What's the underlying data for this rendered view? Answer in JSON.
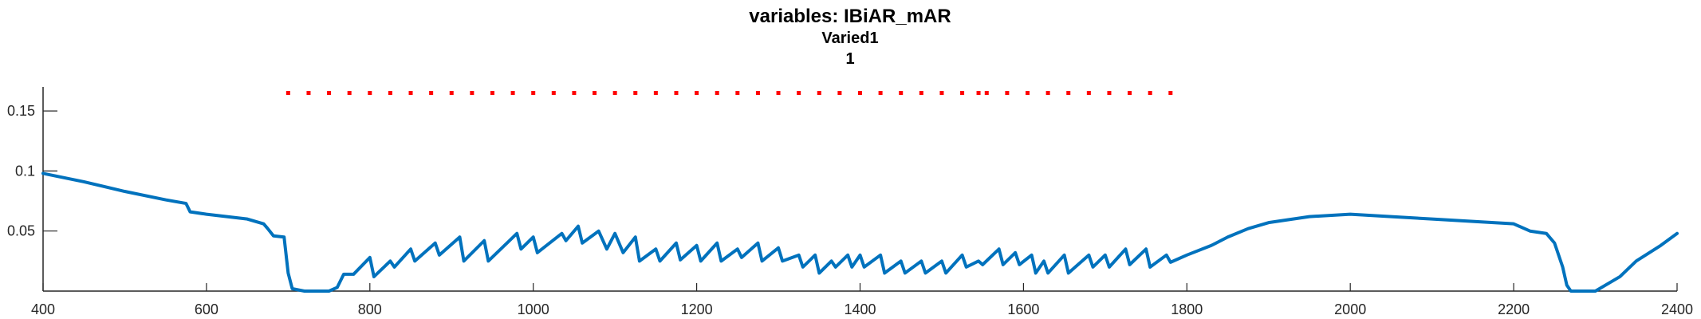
{
  "chart_data": {
    "type": "line",
    "title_lines": [
      "variables: IBiAR_mAR",
      "Varied1",
      "1"
    ],
    "xlabel": "",
    "ylabel": "",
    "xlim": [
      400,
      2400
    ],
    "ylim": [
      0,
      0.17
    ],
    "xticks": [
      400,
      600,
      800,
      1000,
      1200,
      1400,
      1600,
      1800,
      2000,
      2200,
      2400
    ],
    "xtick_labels": [
      "400",
      "600",
      "800",
      "1000",
      "1200",
      "1400",
      "1600",
      "1800",
      "2000",
      "2200",
      "2400"
    ],
    "yticks": [
      0.05,
      0.1,
      0.15
    ],
    "ytick_labels": [
      "0.05",
      "0.1",
      "0.15"
    ],
    "grid": false,
    "series": [
      {
        "type": "line",
        "color": "#0072BD",
        "points": [
          [
            400,
            0.098
          ],
          [
            450,
            0.091
          ],
          [
            500,
            0.083
          ],
          [
            550,
            0.076
          ],
          [
            575,
            0.073
          ],
          [
            580,
            0.066
          ],
          [
            600,
            0.064
          ],
          [
            650,
            0.06
          ],
          [
            670,
            0.056
          ],
          [
            675,
            0.052
          ],
          [
            682,
            0.046
          ],
          [
            695,
            0.045
          ],
          [
            700,
            0.015
          ],
          [
            705,
            0.002
          ],
          [
            720,
            0.0
          ],
          [
            750,
            0.0
          ],
          [
            760,
            0.003
          ],
          [
            768,
            0.014
          ],
          [
            780,
            0.014
          ],
          [
            800,
            0.028
          ],
          [
            805,
            0.012
          ],
          [
            825,
            0.025
          ],
          [
            830,
            0.02
          ],
          [
            850,
            0.035
          ],
          [
            855,
            0.025
          ],
          [
            880,
            0.04
          ],
          [
            885,
            0.03
          ],
          [
            910,
            0.045
          ],
          [
            915,
            0.025
          ],
          [
            940,
            0.042
          ],
          [
            945,
            0.025
          ],
          [
            980,
            0.048
          ],
          [
            985,
            0.035
          ],
          [
            1000,
            0.045
          ],
          [
            1005,
            0.032
          ],
          [
            1035,
            0.048
          ],
          [
            1040,
            0.042
          ],
          [
            1055,
            0.054
          ],
          [
            1060,
            0.04
          ],
          [
            1080,
            0.05
          ],
          [
            1090,
            0.035
          ],
          [
            1100,
            0.048
          ],
          [
            1110,
            0.032
          ],
          [
            1125,
            0.045
          ],
          [
            1130,
            0.025
          ],
          [
            1150,
            0.035
          ],
          [
            1155,
            0.025
          ],
          [
            1175,
            0.04
          ],
          [
            1180,
            0.026
          ],
          [
            1200,
            0.038
          ],
          [
            1205,
            0.025
          ],
          [
            1225,
            0.04
          ],
          [
            1230,
            0.025
          ],
          [
            1250,
            0.035
          ],
          [
            1255,
            0.028
          ],
          [
            1275,
            0.04
          ],
          [
            1280,
            0.025
          ],
          [
            1300,
            0.036
          ],
          [
            1305,
            0.025
          ],
          [
            1325,
            0.03
          ],
          [
            1330,
            0.02
          ],
          [
            1345,
            0.03
          ],
          [
            1350,
            0.015
          ],
          [
            1365,
            0.025
          ],
          [
            1370,
            0.02
          ],
          [
            1385,
            0.03
          ],
          [
            1390,
            0.02
          ],
          [
            1400,
            0.03
          ],
          [
            1405,
            0.02
          ],
          [
            1425,
            0.03
          ],
          [
            1430,
            0.015
          ],
          [
            1450,
            0.025
          ],
          [
            1455,
            0.015
          ],
          [
            1475,
            0.025
          ],
          [
            1480,
            0.015
          ],
          [
            1500,
            0.025
          ],
          [
            1505,
            0.015
          ],
          [
            1525,
            0.03
          ],
          [
            1530,
            0.02
          ],
          [
            1545,
            0.025
          ],
          [
            1550,
            0.022
          ],
          [
            1570,
            0.035
          ],
          [
            1575,
            0.022
          ],
          [
            1590,
            0.032
          ],
          [
            1595,
            0.022
          ],
          [
            1610,
            0.03
          ],
          [
            1615,
            0.015
          ],
          [
            1625,
            0.025
          ],
          [
            1630,
            0.015
          ],
          [
            1650,
            0.03
          ],
          [
            1655,
            0.015
          ],
          [
            1680,
            0.03
          ],
          [
            1685,
            0.02
          ],
          [
            1700,
            0.03
          ],
          [
            1705,
            0.02
          ],
          [
            1725,
            0.035
          ],
          [
            1730,
            0.022
          ],
          [
            1750,
            0.035
          ],
          [
            1755,
            0.02
          ],
          [
            1775,
            0.03
          ],
          [
            1780,
            0.024
          ],
          [
            1800,
            0.03
          ],
          [
            1830,
            0.038
          ],
          [
            1850,
            0.045
          ],
          [
            1875,
            0.052
          ],
          [
            1900,
            0.057
          ],
          [
            1950,
            0.062
          ],
          [
            2000,
            0.064
          ],
          [
            2050,
            0.062
          ],
          [
            2100,
            0.06
          ],
          [
            2150,
            0.058
          ],
          [
            2200,
            0.056
          ],
          [
            2220,
            0.05
          ],
          [
            2240,
            0.048
          ],
          [
            2250,
            0.04
          ],
          [
            2260,
            0.02
          ],
          [
            2265,
            0.005
          ],
          [
            2270,
            0.0
          ],
          [
            2300,
            0.0
          ],
          [
            2330,
            0.012
          ],
          [
            2350,
            0.025
          ],
          [
            2380,
            0.038
          ],
          [
            2400,
            0.048
          ]
        ]
      },
      {
        "type": "scatter",
        "color": "#FF0000",
        "y": 0.165,
        "x": [
          700,
          725,
          750,
          775,
          800,
          825,
          850,
          875,
          900,
          925,
          950,
          975,
          1000,
          1025,
          1050,
          1075,
          1100,
          1125,
          1150,
          1175,
          1200,
          1225,
          1250,
          1275,
          1300,
          1325,
          1350,
          1375,
          1400,
          1425,
          1450,
          1475,
          1500,
          1525,
          1545,
          1555,
          1580,
          1605,
          1630,
          1655,
          1680,
          1705,
          1730,
          1755,
          1780
        ]
      }
    ]
  }
}
